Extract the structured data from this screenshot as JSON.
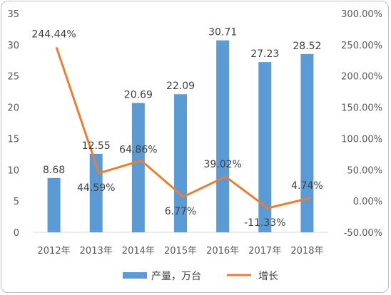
{
  "chart_data": {
    "type": "bar+line",
    "categories": [
      "2012年",
      "2013年",
      "2014年",
      "2015年",
      "2016年",
      "2017年",
      "2018年"
    ],
    "series": [
      {
        "name": "产量，万台",
        "type": "bar",
        "axis": "left",
        "color": "#5b9bd5",
        "values": [
          8.68,
          12.55,
          20.69,
          22.09,
          30.71,
          27.23,
          28.52
        ],
        "labels": [
          "8.68",
          "12.55",
          "20.69",
          "22.09",
          "30.71",
          "27.23",
          "28.52"
        ]
      },
      {
        "name": "增长",
        "type": "line",
        "axis": "right",
        "color": "#ed7d31",
        "values": [
          244.44,
          44.59,
          64.86,
          6.77,
          39.02,
          -11.33,
          4.74
        ],
        "labels": [
          "244.44%",
          "44.59%",
          "64.86%",
          "6.77%",
          "39.02%",
          "-11.33%",
          "4.74%"
        ]
      }
    ],
    "y_left": {
      "min": 0,
      "max": 35,
      "ticks": [
        0,
        5,
        10,
        15,
        20,
        25,
        30,
        35
      ],
      "tick_labels": [
        "0",
        "5",
        "10",
        "15",
        "20",
        "25",
        "30",
        "35"
      ]
    },
    "y_right": {
      "min": -50,
      "max": 300,
      "ticks": [
        -50,
        0,
        50,
        100,
        150,
        200,
        250,
        300
      ],
      "tick_labels": [
        "-50.00%",
        "0.00%",
        "50.00%",
        "100.00%",
        "150.00%",
        "200.00%",
        "250.00%",
        "300.00%"
      ]
    },
    "title": "",
    "xlabel": "",
    "ylabel": "",
    "grid": false,
    "legend": "bottom"
  }
}
